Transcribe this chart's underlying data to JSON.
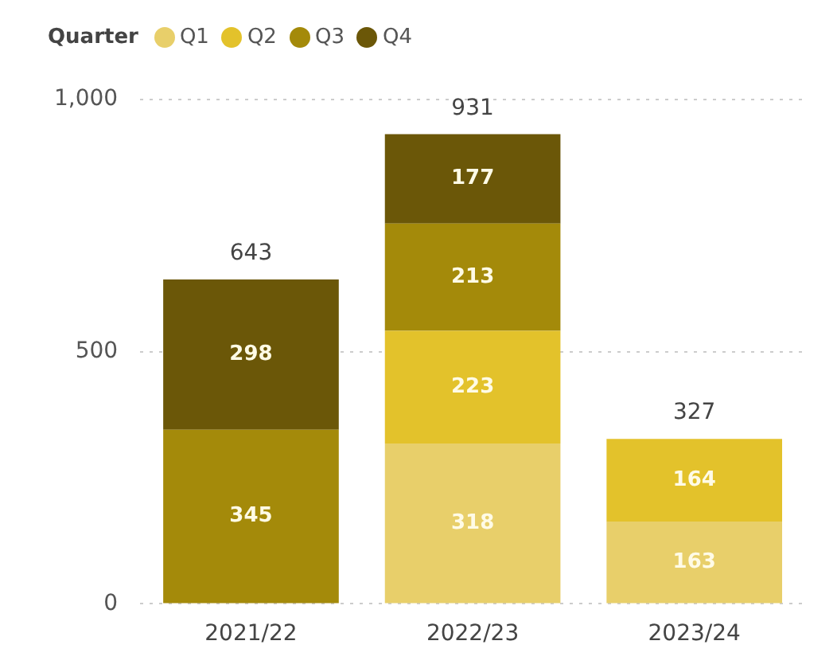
{
  "chart_data": {
    "type": "bar",
    "stacked": true,
    "legend_title": "Quarter",
    "legend": "top left",
    "categories": [
      "2021/22",
      "2022/23",
      "2023/24"
    ],
    "series": [
      {
        "name": "Q1",
        "color": "#e8cf6a",
        "values": [
          null,
          318,
          163
        ]
      },
      {
        "name": "Q2",
        "color": "#e3c22b",
        "values": [
          null,
          223,
          164
        ]
      },
      {
        "name": "Q3",
        "color": "#a48a0a",
        "values": [
          345,
          213,
          null
        ]
      },
      {
        "name": "Q4",
        "color": "#6b5708",
        "values": [
          298,
          177,
          null
        ]
      }
    ],
    "totals": [
      "643",
      "931",
      "327"
    ],
    "data_labels": true,
    "grid": "y",
    "ylim": [
      0,
      1000
    ],
    "yticks": [
      0,
      {
        "value": 500,
        "label": "500"
      },
      {
        "value": 1000,
        "label": "1,000"
      }
    ]
  }
}
